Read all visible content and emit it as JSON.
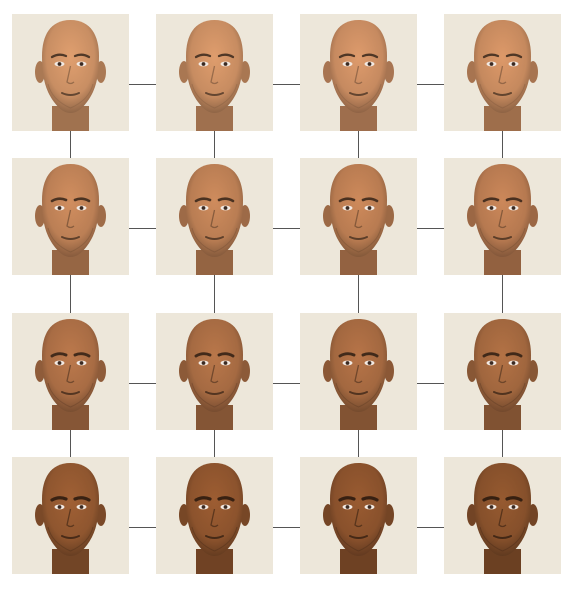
{
  "grid": {
    "rows": 4,
    "cols": 4,
    "tile_background": "#ede7da",
    "connector_color": "#555555",
    "skin_tones": [
      [
        "#c88e63",
        "#c78c61",
        "#c68a60",
        "#c5895e"
      ],
      [
        "#bb7f55",
        "#b97d53",
        "#b87b51",
        "#b67950"
      ],
      [
        "#a86c44",
        "#a56a42",
        "#a36840",
        "#a0663e"
      ],
      [
        "#8f562f",
        "#8c532d",
        "#89512c",
        "#86502b"
      ]
    ],
    "feature_strength": [
      [
        0.15,
        0.15,
        0.15,
        0.15
      ],
      [
        0.3,
        0.3,
        0.3,
        0.3
      ],
      [
        0.45,
        0.45,
        0.45,
        0.45
      ],
      [
        0.6,
        0.6,
        0.6,
        0.6
      ]
    ]
  }
}
